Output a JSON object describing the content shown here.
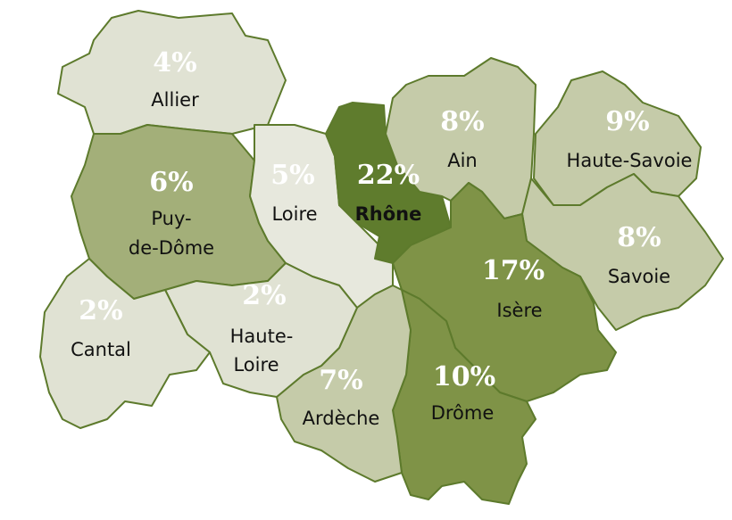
{
  "map": {
    "regions": [
      {
        "name": "Allier",
        "value": 4,
        "value_label": "4%",
        "color": "#e0e2d3"
      },
      {
        "name": "Puy-de-Dôme",
        "value": 6,
        "value_label": "6%",
        "color": "#a3af79"
      },
      {
        "name": "Loire",
        "value": 5,
        "value_label": "5%",
        "color": "#e7e8dd"
      },
      {
        "name": "Rhône",
        "value": 22,
        "value_label": "22%",
        "color": "#5f7c2d"
      },
      {
        "name": "Ain",
        "value": 8,
        "value_label": "8%",
        "color": "#c5cba9"
      },
      {
        "name": "Haute-Savoie",
        "value": 9,
        "value_label": "9%",
        "color": "#c5cba9"
      },
      {
        "name": "Savoie",
        "value": 8,
        "value_label": "8%",
        "color": "#c5cba9"
      },
      {
        "name": "Isère",
        "value": 17,
        "value_label": "17%",
        "color": "#7f9347"
      },
      {
        "name": "Drôme",
        "value": 10,
        "value_label": "10%",
        "color": "#7f9347"
      },
      {
        "name": "Ardèche",
        "value": 7,
        "value_label": "7%",
        "color": "#c5cba9"
      },
      {
        "name": "Haute-Loire",
        "value": 2,
        "value_label": "2%",
        "color": "#e0e2d3"
      },
      {
        "name": "Cantal",
        "value": 2,
        "value_label": "2%",
        "color": "#e0e2d3"
      }
    ]
  }
}
